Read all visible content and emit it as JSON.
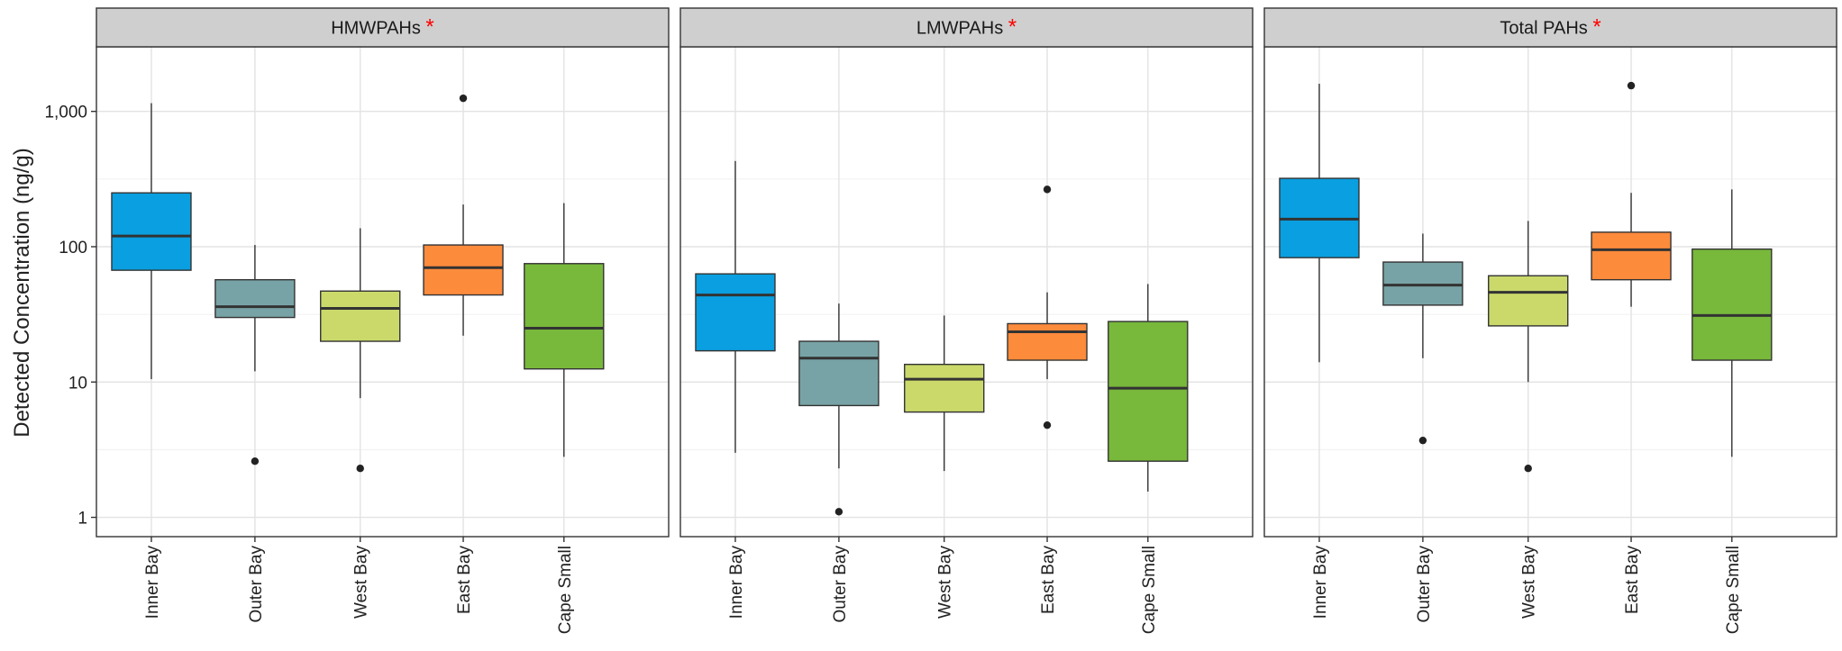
{
  "chart_data": {
    "type": "boxplot",
    "ylabel": "Detected Concentration (ng/g)",
    "y_scale": "log10",
    "ylim": [
      0.72,
      3000
    ],
    "y_ticks": [
      1,
      10,
      100,
      1000
    ],
    "y_tick_labels": [
      "1",
      "10",
      "100",
      "1,000"
    ],
    "categories": [
      "Inner Bay",
      "Outer Bay",
      "West Bay",
      "East Bay",
      "Cape Small"
    ],
    "colors": [
      "#0a9fe0",
      "#78a3a6",
      "#cbd96b",
      "#fd8b3c",
      "#78b83b"
    ],
    "significance_marker": "*",
    "significance_color": "#ff0000",
    "grid": true,
    "panels": [
      {
        "title": "HMWPAHs",
        "boxes": [
          {
            "min": 10.5,
            "q1": 67,
            "median": 120,
            "q3": 250,
            "max": 1150,
            "outliers": []
          },
          {
            "min": 12,
            "q1": 30,
            "median": 36,
            "q3": 57,
            "max": 103,
            "outliers": [
              2.6
            ]
          },
          {
            "min": 7.6,
            "q1": 20,
            "median": 35,
            "q3": 47,
            "max": 137,
            "outliers": [
              2.3
            ]
          },
          {
            "min": 22,
            "q1": 44,
            "median": 70,
            "q3": 103,
            "max": 205,
            "outliers": [
              1250
            ]
          },
          {
            "min": 2.8,
            "q1": 12.5,
            "median": 25,
            "q3": 75,
            "max": 210,
            "outliers": []
          }
        ]
      },
      {
        "title": "LMWPAHs",
        "boxes": [
          {
            "min": 3.0,
            "q1": 17,
            "median": 44,
            "q3": 63,
            "max": 430,
            "outliers": []
          },
          {
            "min": 2.3,
            "q1": 6.7,
            "median": 15,
            "q3": 20,
            "max": 38,
            "outliers": [
              1.1
            ]
          },
          {
            "min": 2.2,
            "q1": 6.0,
            "median": 10.5,
            "q3": 13.5,
            "max": 31,
            "outliers": []
          },
          {
            "min": 10.5,
            "q1": 14.5,
            "median": 23.5,
            "q3": 27,
            "max": 46,
            "outliers": [
              4.8,
              265
            ]
          },
          {
            "min": 1.55,
            "q1": 2.6,
            "median": 9.0,
            "q3": 28,
            "max": 53,
            "outliers": []
          }
        ]
      },
      {
        "title": "Total PAHs",
        "boxes": [
          {
            "min": 14,
            "q1": 83,
            "median": 160,
            "q3": 320,
            "max": 1600,
            "outliers": []
          },
          {
            "min": 15,
            "q1": 37,
            "median": 52,
            "q3": 77,
            "max": 125,
            "outliers": [
              3.7
            ]
          },
          {
            "min": 10,
            "q1": 26,
            "median": 46,
            "q3": 61,
            "max": 155,
            "outliers": [
              2.3
            ]
          },
          {
            "min": 36,
            "q1": 57,
            "median": 95,
            "q3": 128,
            "max": 250,
            "outliers": [
              1550
            ]
          },
          {
            "min": 2.8,
            "q1": 14.5,
            "median": 31,
            "q3": 96,
            "max": 265,
            "outliers": []
          }
        ]
      }
    ]
  }
}
